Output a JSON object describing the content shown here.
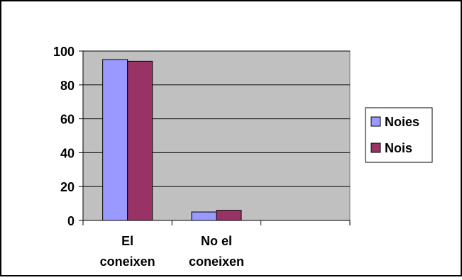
{
  "chart_data": {
    "type": "bar",
    "categories": [
      [
        "El",
        "coneixen"
      ],
      [
        "No el",
        "coneixen"
      ],
      [
        "",
        ""
      ]
    ],
    "series": [
      {
        "name": "Noies",
        "values": [
          95,
          5,
          null
        ],
        "color": "#9999FF"
      },
      {
        "name": "Nois",
        "values": [
          94,
          6,
          null
        ],
        "color": "#993366"
      }
    ],
    "ylim": [
      0,
      100
    ],
    "yticks": [
      0,
      20,
      40,
      60,
      80,
      100
    ],
    "grid": true,
    "plot_background": "#C0C0C0",
    "legend_position": "right"
  }
}
